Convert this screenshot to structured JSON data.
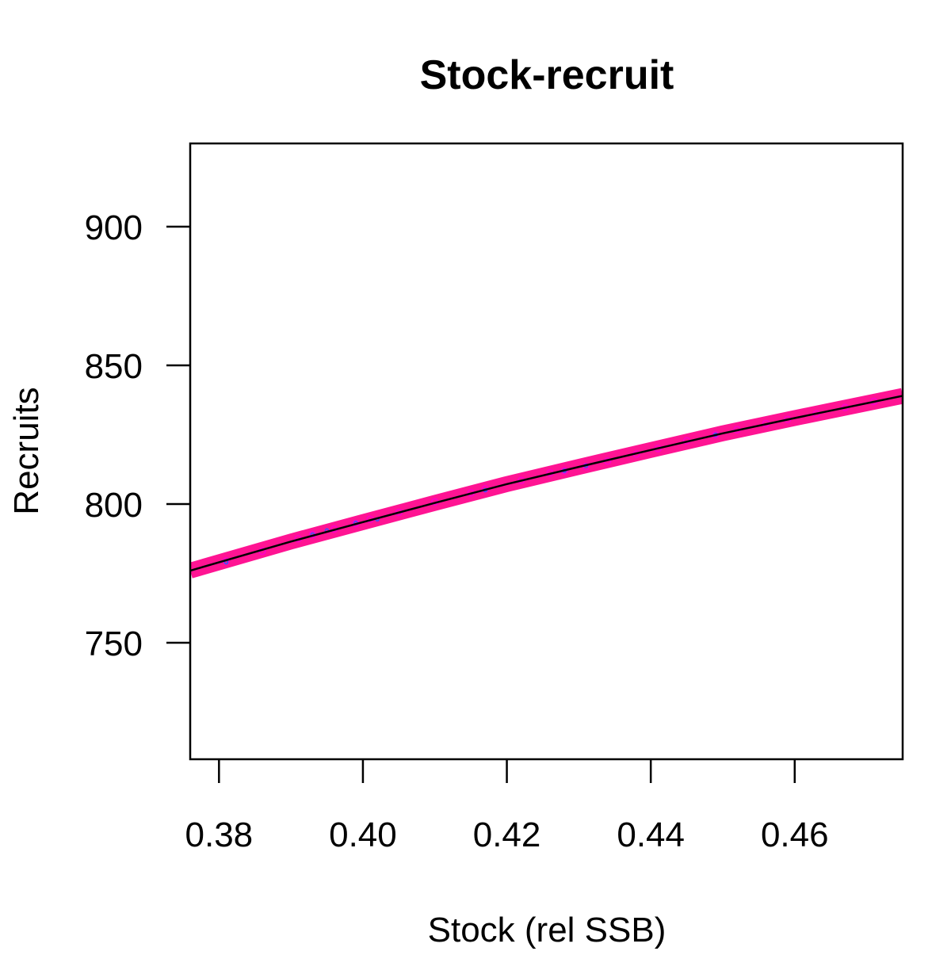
{
  "chart_data": {
    "type": "line",
    "title": "Stock-recruit",
    "xlabel": "Stock (rel SSB)",
    "ylabel": "Recruits",
    "xlim": [
      0.376,
      0.475
    ],
    "ylim": [
      708,
      930
    ],
    "x_ticks": [
      0.38,
      0.4,
      0.42,
      0.44,
      0.46
    ],
    "x_tick_labels": [
      "0.38",
      "0.40",
      "0.42",
      "0.44",
      "0.46"
    ],
    "y_ticks": [
      750,
      800,
      850,
      900
    ],
    "y_tick_labels": [
      "750",
      "800",
      "850",
      "900"
    ],
    "grid": false,
    "legend": "none",
    "series": [
      {
        "kind": "band",
        "color": "#ff1493",
        "x": [
          0.376,
          0.39,
          0.4,
          0.41,
          0.42,
          0.43,
          0.44,
          0.45,
          0.46,
          0.475
        ],
        "y": [
          776.0,
          786.5,
          793.5,
          800.4,
          807.2,
          813.4,
          819.5,
          825.5,
          831.0,
          839.0
        ]
      },
      {
        "kind": "points",
        "color": "#ff00cc",
        "x": [
          0.381,
          0.386,
          0.391,
          0.393,
          0.396,
          0.399,
          0.401,
          0.405,
          0.41,
          0.415,
          0.417,
          0.422,
          0.426,
          0.428,
          0.431,
          0.434,
          0.438,
          0.441,
          0.445,
          0.449,
          0.452,
          0.456,
          0.459,
          0.463,
          0.467,
          0.471
        ],
        "y": [
          779.5,
          783.0,
          787.5,
          789.0,
          791.0,
          793.0,
          794.5,
          797.0,
          800.8,
          804.0,
          805.5,
          808.5,
          811.2,
          812.0,
          813.5,
          815.5,
          818.0,
          820.0,
          822.8,
          825.0,
          826.8,
          829.0,
          830.5,
          832.5,
          834.8,
          837.0
        ]
      },
      {
        "kind": "points",
        "color": "#3355ff",
        "x": [
          0.381,
          0.393,
          0.395,
          0.399,
          0.402,
          0.417,
          0.428,
          0.431,
          0.449
        ],
        "y": [
          779.0,
          789.0,
          790.5,
          793.2,
          794.5,
          805.0,
          812.0,
          813.8,
          825.0
        ]
      },
      {
        "kind": "line",
        "color": "#000000",
        "x": [
          0.376,
          0.39,
          0.4,
          0.41,
          0.42,
          0.43,
          0.44,
          0.45,
          0.46,
          0.475
        ],
        "y": [
          776.0,
          786.5,
          793.5,
          800.4,
          807.2,
          813.4,
          819.5,
          825.5,
          831.0,
          839.0
        ]
      }
    ]
  }
}
